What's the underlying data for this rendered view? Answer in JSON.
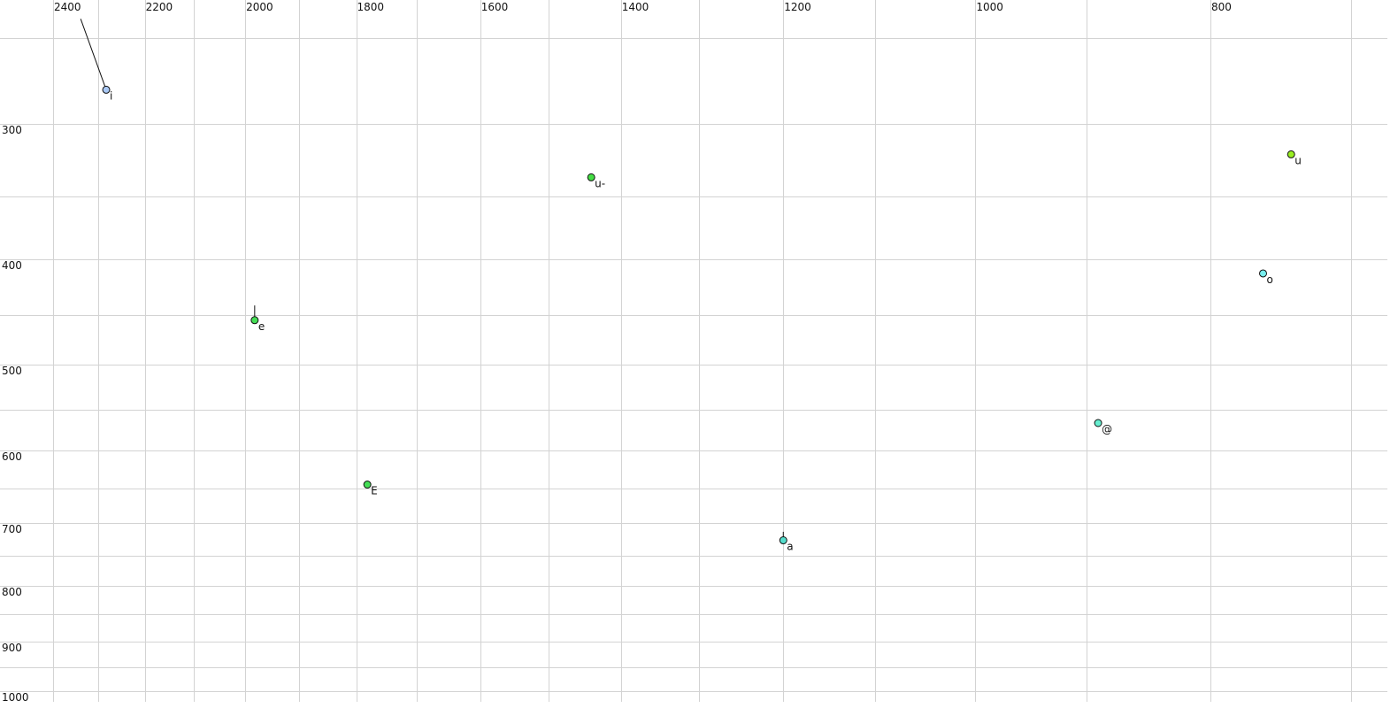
{
  "chart_data": {
    "type": "scatter",
    "title": "",
    "xlabel": "",
    "ylabel": "",
    "x_scale": "log",
    "y_scale": "log",
    "x_reversed": true,
    "y_reversed": true,
    "xlim": [
      2400,
      700
    ],
    "ylim": [
      250,
      1000
    ],
    "x_grid": [
      2400,
      2300,
      2200,
      2100,
      2000,
      1900,
      1800,
      1700,
      1600,
      1500,
      1400,
      1300,
      1200,
      1100,
      1000,
      900,
      800,
      700
    ],
    "y_grid": [
      250,
      300,
      350,
      400,
      450,
      500,
      550,
      600,
      650,
      700,
      750,
      800,
      850,
      900,
      950,
      1000
    ],
    "x_tick_labels": [
      "2400",
      "2200",
      "2000",
      "1800",
      "1600",
      "1400",
      "1200",
      "1000",
      "800"
    ],
    "y_tick_labels": [
      "300",
      "400",
      "500",
      "600",
      "700",
      "800",
      "900",
      "1000"
    ],
    "x_axis_position": "top",
    "grid": true,
    "points": [
      {
        "label": "i",
        "x": 2282,
        "y": 279,
        "color": "#a9c8f5",
        "trail": {
          "x": 2338,
          "y": 240
        }
      },
      {
        "label": "e",
        "x": 1982,
        "y": 455,
        "color": "#44dd55",
        "trail": {
          "x": 1982,
          "y": 441
        }
      },
      {
        "label": "E",
        "x": 1781,
        "y": 645,
        "color": "#44dd55"
      },
      {
        "label": "u-",
        "x": 1440,
        "y": 336,
        "color": "#44dd44"
      },
      {
        "label": "a",
        "x": 1200,
        "y": 726,
        "color": "#55ddcc",
        "trail": {
          "x": 1200,
          "y": 713
        }
      },
      {
        "label": "@",
        "x": 890,
        "y": 566,
        "color": "#66eed0"
      },
      {
        "label": "o",
        "x": 761,
        "y": 412,
        "color": "#77eeee"
      },
      {
        "label": "u",
        "x": 741,
        "y": 320,
        "color": "#99ee22"
      }
    ]
  }
}
